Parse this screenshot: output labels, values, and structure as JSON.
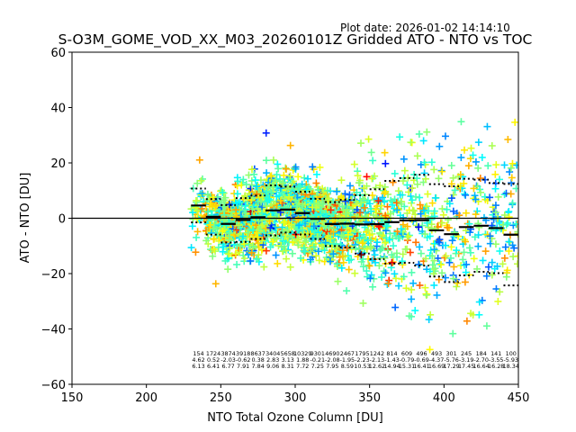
{
  "header": {
    "plot_date": "Plot date: 2026-01-02 14:14:10",
    "title": "S-O3M_GOME_VOD_XX_M03_20260101Z Gridded ATO - NTO vs TOC"
  },
  "chart_data": {
    "type": "scatter",
    "title": "S-O3M_GOME_VOD_XX_M03_20260101Z Gridded ATO - NTO vs TOC",
    "xlabel": "NTO Total Ozone Column [DU]",
    "ylabel": "ATO - NTO [DU]",
    "xlim": [
      150,
      450
    ],
    "ylim": [
      -60,
      60
    ],
    "xticks": [
      150,
      200,
      250,
      300,
      350,
      400,
      450
    ],
    "yticks": [
      -60,
      -40,
      -20,
      0,
      20,
      40,
      60
    ],
    "xtick_labels": [
      "150",
      "200",
      "250",
      "300",
      "350",
      "400",
      "450"
    ],
    "ytick_labels": [
      "−60",
      "−40",
      "−20",
      "0",
      "20",
      "40",
      "60"
    ],
    "grid": false,
    "marker": "plus",
    "colormap": "jet",
    "reference_line_y": 0,
    "bin_width": 10,
    "bins": {
      "x_start": [
        230,
        240,
        250,
        260,
        270,
        280,
        290,
        300,
        310,
        320,
        330,
        340,
        350,
        360,
        370,
        380,
        390,
        400,
        410,
        420,
        430,
        440
      ],
      "count": [
        "154",
        "1724",
        "3874",
        "3918",
        "8637",
        "3404",
        "5658",
        "10329",
        "9301",
        "4690",
        "2467",
        "1795",
        "1242",
        "814",
        "609",
        "496",
        "493",
        "301",
        "245",
        "184",
        "141",
        "100"
      ],
      "mean": [
        "4.62",
        "0.52",
        "-2.03",
        "-0.62",
        "0.38",
        "2.83",
        "3.13",
        "1.88",
        "-0.21",
        "-2.08",
        "-1.95",
        "-2.23",
        "-2.13",
        "-1.43",
        "-0.79",
        "-0.69",
        "-4.37",
        "-5.76",
        "-3.19",
        "-2.70",
        "-3.55",
        "-5.93"
      ],
      "std": [
        "6.13",
        "6.41",
        "6.77",
        "7.91",
        "7.84",
        "9.06",
        "8.31",
        "7.72",
        "7.25",
        "7.95",
        "8.59",
        "10.53",
        "12.62",
        "14.94",
        "15.31",
        "16.41",
        "16.69",
        "17.29",
        "17.45",
        "16.64",
        "16.28",
        "18.34"
      ]
    },
    "colors": {
      "mean_line": "#000000",
      "std_dots": "#000000",
      "zero_line": "#000000",
      "axes": "#000000"
    }
  }
}
